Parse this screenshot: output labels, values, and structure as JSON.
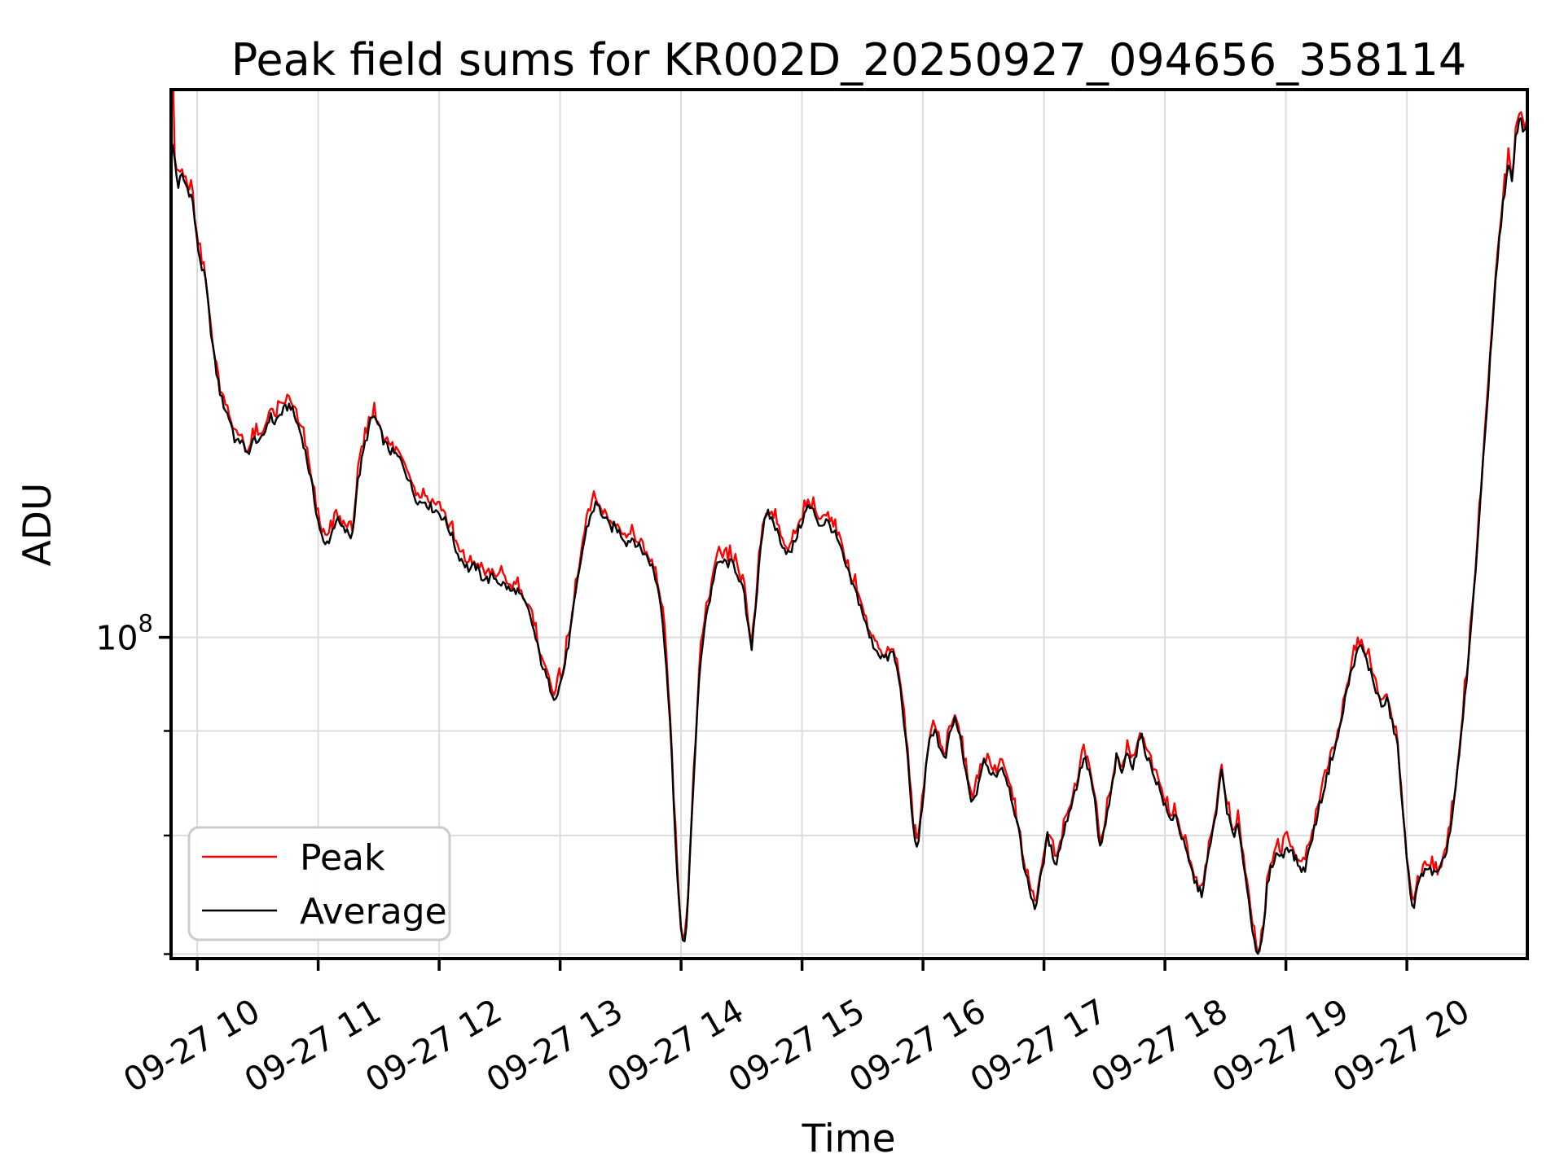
{
  "figure": {
    "title": "Peak field sums for KR002D_20250927_094656_358114",
    "xlabel": "Time",
    "ylabel": "ADU",
    "background_color": "#ffffff",
    "grid_color": "#dcdcdc"
  },
  "legend": {
    "entries": [
      {
        "label": "Peak",
        "color": "#ff0000"
      },
      {
        "label": "Average",
        "color": "#000000"
      }
    ]
  },
  "axes": {
    "y_scale": "log",
    "x_range_hours": [
      9.784,
      20.996
    ],
    "y_range": [
      69650000.0,
      185300000.0
    ],
    "x_ticks": [
      {
        "hour": 10,
        "label": "09-27 10"
      },
      {
        "hour": 11,
        "label": "09-27 11"
      },
      {
        "hour": 12,
        "label": "09-27 12"
      },
      {
        "hour": 13,
        "label": "09-27 13"
      },
      {
        "hour": 14,
        "label": "09-27 14"
      },
      {
        "hour": 15,
        "label": "09-27 15"
      },
      {
        "hour": 16,
        "label": "09-27 16"
      },
      {
        "hour": 17,
        "label": "09-27 17"
      },
      {
        "hour": 18,
        "label": "09-27 18"
      },
      {
        "hour": 19,
        "label": "09-27 19"
      },
      {
        "hour": 20,
        "label": "09-27 20"
      }
    ],
    "y_major_tick": {
      "value": 100000000.0,
      "base": "10",
      "exp": "8"
    },
    "y_minor_ticks": [
      90000000.0,
      80000000.0,
      70000000.0
    ]
  },
  "chart_data": {
    "type": "line",
    "title": "Peak field sums for KR002D_20250927_094656_358114",
    "xlabel": "Time",
    "ylabel": "ADU",
    "x_unit": "hours of 2025-09-27 (x tick labels are month-day hour)",
    "y_unit": "ADU (log scale, only labeled tick 1e8)",
    "legend_position": "lower left",
    "grid": "on",
    "initial_peak_spike": 190000000.0,
    "series": [
      {
        "name": "Peak",
        "color": "#ff0000",
        "note": "nearly identical to Average, ~0.4-2% higher with small spikes; visible as red fringe around black line and a tall red spike at the very first samples"
      },
      {
        "name": "Average",
        "color": "#000000",
        "anchors": [
          [
            9.784,
            175400000.0
          ],
          [
            9.81,
            172000000.0
          ],
          [
            9.84,
            166000000.0
          ],
          [
            9.87,
            168300000.0
          ],
          [
            9.9,
            166800000.0
          ],
          [
            9.93,
            165300000.0
          ],
          [
            9.96,
            164000000.0
          ],
          [
            10.0,
            155700000.0
          ],
          [
            10.04,
            151500000.0
          ],
          [
            10.07,
            149400000.0
          ],
          [
            10.1,
            143400000.0
          ],
          [
            10.15,
            135700000.0
          ],
          [
            10.2,
            130800000.0
          ],
          [
            10.24,
            129000000.0
          ],
          [
            10.28,
            127300000.0
          ],
          [
            10.31,
            125000000.0
          ],
          [
            10.34,
            124400000.0
          ],
          [
            10.37,
            125200000.0
          ],
          [
            10.4,
            122700000.0
          ],
          [
            10.44,
            123800000.0
          ],
          [
            10.48,
            125200000.0
          ],
          [
            10.52,
            124400000.0
          ],
          [
            10.56,
            126100000.0
          ],
          [
            10.6,
            128400000.0
          ],
          [
            10.64,
            127300000.0
          ],
          [
            10.68,
            128400000.0
          ],
          [
            10.72,
            129200000.0
          ],
          [
            10.77,
            130000000.0
          ],
          [
            10.8,
            128400000.0
          ],
          [
            10.84,
            126700000.0
          ],
          [
            10.88,
            124400000.0
          ],
          [
            10.94,
            119400000.0
          ],
          [
            11.0,
            114000000.0
          ],
          [
            11.05,
            110700000.0
          ],
          [
            11.1,
            111900000.0
          ],
          [
            11.15,
            114300000.0
          ],
          [
            11.2,
            113000000.0
          ],
          [
            11.25,
            112400000.0
          ],
          [
            11.28,
            111900000.0
          ],
          [
            11.32,
            118300000.0
          ],
          [
            11.38,
            123800000.0
          ],
          [
            11.43,
            127300000.0
          ],
          [
            11.46,
            128400000.0
          ],
          [
            11.5,
            126700000.0
          ],
          [
            11.55,
            124400000.0
          ],
          [
            11.6,
            123300000.0
          ],
          [
            11.65,
            122700000.0
          ],
          [
            11.7,
            121600000.0
          ],
          [
            11.75,
            119400000.0
          ],
          [
            11.8,
            117200000.0
          ],
          [
            11.85,
            116300000.0
          ],
          [
            11.88,
            116700000.0
          ],
          [
            11.92,
            115900000.0
          ],
          [
            11.96,
            115500000.0
          ],
          [
            12.0,
            115100000.0
          ],
          [
            12.05,
            114000000.0
          ],
          [
            12.1,
            112400000.0
          ],
          [
            12.15,
            109900000.0
          ],
          [
            12.2,
            108900000.0
          ],
          [
            12.25,
            107900000.0
          ],
          [
            12.3,
            108400000.0
          ],
          [
            12.35,
            107100000.0
          ],
          [
            12.4,
            106700000.0
          ],
          [
            12.45,
            107100000.0
          ],
          [
            12.5,
            106400000.0
          ],
          [
            12.55,
            106000000.0
          ],
          [
            12.6,
            105200000.0
          ],
          [
            12.64,
            105600000.0
          ],
          [
            12.68,
            104500000.0
          ],
          [
            12.72,
            103600000.0
          ],
          [
            12.76,
            102100000.0
          ],
          [
            12.8,
            99700000.0
          ],
          [
            12.84,
            97550000.0
          ],
          [
            12.88,
            95780000.0
          ],
          [
            12.92,
            94470000.0
          ],
          [
            12.95,
            93610000.0
          ],
          [
            12.98,
            94000000.0
          ],
          [
            13.02,
            95780000.0
          ],
          [
            13.06,
            98450000.0
          ],
          [
            13.1,
            102100000.0
          ],
          [
            13.14,
            106000000.0
          ],
          [
            13.18,
            109900000.0
          ],
          [
            13.22,
            113000000.0
          ],
          [
            13.26,
            115100000.0
          ],
          [
            13.3,
            116300000.0
          ],
          [
            13.34,
            115100000.0
          ],
          [
            13.38,
            114000000.0
          ],
          [
            13.42,
            113000000.0
          ],
          [
            13.45,
            113400000.0
          ],
          [
            13.5,
            112400000.0
          ],
          [
            13.55,
            111300000.0
          ],
          [
            13.6,
            111900000.0
          ],
          [
            13.65,
            110700000.0
          ],
          [
            13.7,
            109900000.0
          ],
          [
            13.75,
            108700000.0
          ],
          [
            13.78,
            107400000.0
          ],
          [
            13.82,
            105000000.0
          ],
          [
            13.85,
            101700000.0
          ],
          [
            13.88,
            96670000.0
          ],
          [
            13.91,
            90670000.0
          ],
          [
            13.94,
            83100000.0
          ],
          [
            13.97,
            76100000.0
          ],
          [
            14.0,
            71700000.0
          ],
          [
            14.02,
            70900000.0
          ],
          [
            14.05,
            72400000.0
          ],
          [
            14.08,
            79700000.0
          ],
          [
            14.11,
            86600000.0
          ],
          [
            14.14,
            93400000.0
          ],
          [
            14.17,
            98450000.0
          ],
          [
            14.2,
            102100000.0
          ],
          [
            14.24,
            104500000.0
          ],
          [
            14.28,
            107900000.0
          ],
          [
            14.33,
            108900000.0
          ],
          [
            14.38,
            108700000.0
          ],
          [
            14.43,
            108600000.0
          ],
          [
            14.47,
            107400000.0
          ],
          [
            14.52,
            105000000.0
          ],
          [
            14.56,
            100500000.0
          ],
          [
            14.58,
            98450000.0
          ],
          [
            14.62,
            104000000.0
          ],
          [
            14.65,
            109900000.0
          ],
          [
            14.68,
            113400000.0
          ],
          [
            14.72,
            114900000.0
          ],
          [
            14.76,
            114000000.0
          ],
          [
            14.8,
            112400000.0
          ],
          [
            14.85,
            110700000.0
          ],
          [
            14.9,
            109700000.0
          ],
          [
            14.95,
            111900000.0
          ],
          [
            15.0,
            114000000.0
          ],
          [
            15.05,
            115900000.0
          ],
          [
            15.1,
            115100000.0
          ],
          [
            15.15,
            113400000.0
          ],
          [
            15.2,
            114000000.0
          ],
          [
            15.25,
            113000000.0
          ],
          [
            15.3,
            111300000.0
          ],
          [
            15.35,
            108900000.0
          ],
          [
            15.4,
            106700000.0
          ],
          [
            15.45,
            105000000.0
          ],
          [
            15.5,
            102900000.0
          ],
          [
            15.55,
            100300000.0
          ],
          [
            15.6,
            98900000.0
          ],
          [
            15.65,
            98000000.0
          ],
          [
            15.7,
            97550000.0
          ],
          [
            15.75,
            98450000.0
          ],
          [
            15.8,
            95600000.0
          ],
          [
            15.84,
            91510000.0
          ],
          [
            15.88,
            86100000.0
          ],
          [
            15.92,
            80500000.0
          ],
          [
            15.95,
            78700000.0
          ],
          [
            15.98,
            81200000.0
          ],
          [
            16.02,
            85800000.0
          ],
          [
            16.06,
            89400000.0
          ],
          [
            16.1,
            90300000.0
          ],
          [
            16.14,
            88200000.0
          ],
          [
            16.18,
            86900000.0
          ],
          [
            16.22,
            89400000.0
          ],
          [
            16.26,
            91300000.0
          ],
          [
            16.3,
            89800000.0
          ],
          [
            16.34,
            86600000.0
          ],
          [
            16.38,
            84200000.0
          ],
          [
            16.42,
            82700000.0
          ],
          [
            16.46,
            85000000.0
          ],
          [
            16.5,
            86900000.0
          ],
          [
            16.55,
            86100000.0
          ],
          [
            16.6,
            85600000.0
          ],
          [
            16.65,
            86600000.0
          ],
          [
            16.7,
            85000000.0
          ],
          [
            16.75,
            82700000.0
          ],
          [
            16.8,
            79700000.0
          ],
          [
            16.85,
            76500000.0
          ],
          [
            16.9,
            74600000.0
          ],
          [
            16.93,
            73700000.0
          ],
          [
            16.97,
            76100000.0
          ],
          [
            17.0,
            78000000.0
          ],
          [
            17.03,
            80000000.0
          ],
          [
            17.07,
            78300000.0
          ],
          [
            17.1,
            77600000.0
          ],
          [
            17.15,
            79700000.0
          ],
          [
            17.2,
            81900000.0
          ],
          [
            17.26,
            84200000.0
          ],
          [
            17.33,
            87400000.0
          ],
          [
            17.38,
            85800000.0
          ],
          [
            17.42,
            83100000.0
          ],
          [
            17.46,
            78700000.0
          ],
          [
            17.5,
            80500000.0
          ],
          [
            17.55,
            83500000.0
          ],
          [
            17.6,
            87400000.0
          ],
          [
            17.64,
            85800000.0
          ],
          [
            17.7,
            88200000.0
          ],
          [
            17.73,
            86200000.0
          ],
          [
            17.8,
            89600000.0
          ],
          [
            17.86,
            87200000.0
          ],
          [
            17.9,
            86000000.0
          ],
          [
            17.95,
            84500000.0
          ],
          [
            18.0,
            82700000.0
          ],
          [
            18.05,
            81200000.0
          ],
          [
            18.08,
            82200000.0
          ],
          [
            18.13,
            80200000.0
          ],
          [
            18.18,
            78300000.0
          ],
          [
            18.24,
            76200000.0
          ],
          [
            18.3,
            74800000.0
          ],
          [
            18.35,
            77600000.0
          ],
          [
            18.41,
            81200000.0
          ],
          [
            18.47,
            86100000.0
          ],
          [
            18.52,
            81900000.0
          ],
          [
            18.57,
            79700000.0
          ],
          [
            18.61,
            81000000.0
          ],
          [
            18.66,
            76800000.0
          ],
          [
            18.72,
            72400000.0
          ],
          [
            18.77,
            69600000.0
          ],
          [
            18.81,
            71400000.0
          ],
          [
            18.85,
            76100000.0
          ],
          [
            18.89,
            77600000.0
          ],
          [
            18.93,
            78500000.0
          ],
          [
            18.97,
            78000000.0
          ],
          [
            19.01,
            79200000.0
          ],
          [
            19.06,
            78300000.0
          ],
          [
            19.11,
            77300000.0
          ],
          [
            19.15,
            76800000.0
          ],
          [
            19.2,
            79000000.0
          ],
          [
            19.26,
            81900000.0
          ],
          [
            19.32,
            84600000.0
          ],
          [
            19.38,
            87400000.0
          ],
          [
            19.44,
            89800000.0
          ],
          [
            19.5,
            94000000.0
          ],
          [
            19.56,
            97200000.0
          ],
          [
            19.62,
            99200000.0
          ],
          [
            19.66,
            97600000.0
          ],
          [
            19.71,
            95800000.0
          ],
          [
            19.76,
            93600000.0
          ],
          [
            19.8,
            92400000.0
          ],
          [
            19.84,
            93200000.0
          ],
          [
            19.88,
            90700000.0
          ],
          [
            19.92,
            89000000.0
          ],
          [
            19.96,
            83100000.0
          ],
          [
            20.0,
            77600000.0
          ],
          [
            20.05,
            73700000.0
          ],
          [
            20.1,
            75800000.0
          ],
          [
            20.15,
            77300000.0
          ],
          [
            20.2,
            76800000.0
          ],
          [
            20.26,
            76500000.0
          ],
          [
            20.31,
            77900000.0
          ],
          [
            20.36,
            80500000.0
          ],
          [
            20.41,
            85000000.0
          ],
          [
            20.46,
            90700000.0
          ],
          [
            20.51,
            97600000.0
          ],
          [
            20.56,
            106400000.0
          ],
          [
            20.61,
            117000000.0
          ],
          [
            20.66,
            129000000.0
          ],
          [
            20.71,
            143000000.0
          ],
          [
            20.76,
            156000000.0
          ],
          [
            20.8,
            164000000.0
          ],
          [
            20.84,
            170000000.0
          ],
          [
            20.87,
            166800000.0
          ],
          [
            20.9,
            175400000.0
          ],
          [
            20.93,
            180000000.0
          ],
          [
            20.96,
            177000000.0
          ],
          [
            20.996,
            178000000.0
          ]
        ]
      }
    ]
  }
}
